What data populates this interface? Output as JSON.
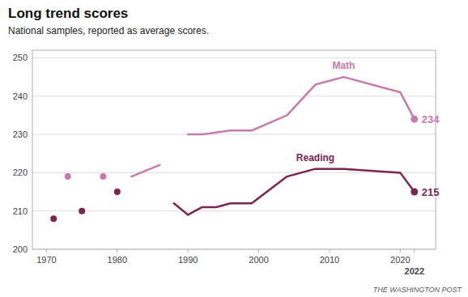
{
  "chart_data": {
    "type": "line",
    "title": "Long trend scores",
    "subtitle": "National samples, reported as average scores.",
    "credit": "THE WASHINGTON POST",
    "xlim": [
      1968,
      2025
    ],
    "ylim": [
      200,
      252
    ],
    "xticks": [
      1970,
      1980,
      1990,
      2000,
      2010,
      2020,
      2022
    ],
    "yticks": [
      200,
      210,
      220,
      230,
      240,
      250
    ],
    "grid": true,
    "series": [
      {
        "name": "Math",
        "color": "#c87aaa",
        "x": [
          1990,
          1992,
          1996,
          1999,
          2004,
          2008,
          2012,
          2020,
          2022
        ],
        "values": [
          230,
          230,
          231,
          231,
          235,
          243,
          245,
          241,
          234
        ]
      },
      {
        "color": "#c87aaa",
        "x": [
          1982,
          1986
        ],
        "values": [
          219,
          222
        ]
      },
      {
        "type": "scatter",
        "marker": "circle",
        "color": "#c87aaa",
        "x": [
          1973,
          1978
        ],
        "values": [
          219,
          219
        ]
      },
      {
        "name": "Reading",
        "color": "#7b2550",
        "x": [
          1988,
          1990,
          1992,
          1994,
          1996,
          1999,
          2004,
          2008,
          2012,
          2020,
          2022
        ],
        "values": [
          212,
          209,
          211,
          211,
          212,
          212,
          219,
          221,
          221,
          220,
          215
        ]
      },
      {
        "type": "scatter",
        "marker": "circle",
        "color": "#7b2550",
        "x": [
          1971,
          1975,
          1980
        ],
        "values": [
          208,
          210,
          215
        ]
      }
    ],
    "annotations": [
      {
        "text": "234",
        "x": 2022,
        "y": 234,
        "color": "#c87aaa"
      },
      {
        "text": "215",
        "x": 2022,
        "y": 215,
        "color": "#7b2550"
      }
    ]
  }
}
